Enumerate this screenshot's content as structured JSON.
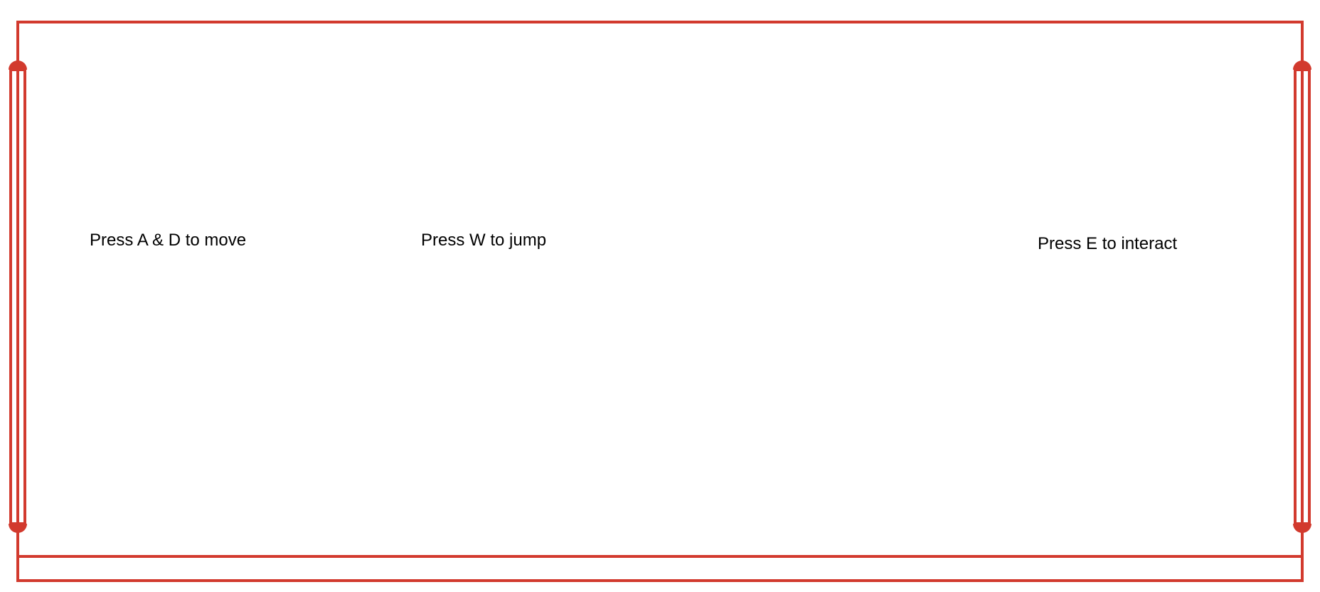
{
  "level": {
    "wall_color": "#d23a2e",
    "background_color": "#ffffff"
  },
  "hints": {
    "move": "Press A & D to move",
    "jump": "Press W to jump",
    "interact": "Press E to interact"
  }
}
